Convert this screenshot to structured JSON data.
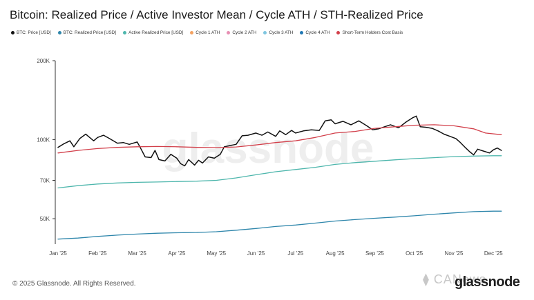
{
  "chart_data": {
    "type": "line",
    "title": "Bitcoin: Realized Price / Active Investor Mean / Cycle ATH / STH-Realized Price",
    "y_scale": "log",
    "ylim": [
      40000,
      200000
    ],
    "y_ticks": [
      {
        "value": 200000,
        "label": "200K"
      },
      {
        "value": 100000,
        "label": "100K"
      },
      {
        "value": 70000,
        "label": "70K"
      },
      {
        "value": 50000,
        "label": "50K"
      }
    ],
    "x_ticks": [
      "Jan '25",
      "Feb '25",
      "Mar '25",
      "Apr '25",
      "May '25",
      "Jun '25",
      "Jul '25",
      "Aug '25",
      "Sep '25",
      "Oct '25",
      "Nov '25",
      "Dec '25"
    ],
    "watermark": "glassnode",
    "legend": [
      {
        "name": "BTC: Price [USD]",
        "color": "#111111"
      },
      {
        "name": "BTC: Realized Price [USD]",
        "color": "#2e86ab"
      },
      {
        "name": "Active Realized Price [USD]",
        "color": "#4db6ac"
      },
      {
        "name": "Cycle 1 ATH",
        "color": "#f4a261"
      },
      {
        "name": "Cycle 2 ATH",
        "color": "#e78fb3"
      },
      {
        "name": "Cycle 3 ATH",
        "color": "#7fc6e0"
      },
      {
        "name": "Cycle 4 ATH",
        "color": "#1f77b4"
      },
      {
        "name": "Short-Term Holders Cost Basis",
        "color": "#d23f4a"
      }
    ],
    "series": [
      {
        "name": "BTC: Price [USD]",
        "color": "#111111",
        "width": 1.5,
        "x": [
          0,
          0.15,
          0.3,
          0.4,
          0.55,
          0.7,
          0.8,
          0.9,
          1.0,
          1.15,
          1.3,
          1.5,
          1.65,
          1.8,
          2.0,
          2.1,
          2.2,
          2.35,
          2.45,
          2.55,
          2.7,
          2.85,
          3.0,
          3.1,
          3.2,
          3.3,
          3.45,
          3.55,
          3.65,
          3.8,
          3.95,
          4.1,
          4.2,
          4.35,
          4.5,
          4.65,
          4.8,
          5.0,
          5.15,
          5.3,
          5.5,
          5.6,
          5.75,
          5.9,
          6.0,
          6.2,
          6.4,
          6.6,
          6.75,
          6.9,
          7.0,
          7.2,
          7.4,
          7.6,
          7.8,
          7.95,
          8.1,
          8.25,
          8.4,
          8.6,
          8.8,
          8.95,
          9.05,
          9.15,
          9.3,
          9.45,
          9.6,
          9.75,
          9.9,
          10.05,
          10.15,
          10.3,
          10.4,
          10.5,
          10.6,
          10.75,
          10.9,
          11.0,
          11.1,
          11.2
        ],
        "y": [
          93500,
          96500,
          99000,
          94000,
          101000,
          105000,
          102000,
          99000,
          102000,
          104000,
          101000,
          97000,
          97500,
          96000,
          98000,
          92000,
          86000,
          85500,
          91000,
          84000,
          83000,
          88000,
          85000,
          81000,
          79500,
          84000,
          80000,
          83500,
          81500,
          86000,
          85000,
          88000,
          94000,
          95000,
          96000,
          103500,
          104000,
          106000,
          104000,
          107000,
          103000,
          108000,
          104500,
          108500,
          106000,
          108000,
          109000,
          108500,
          118000,
          119000,
          115000,
          117500,
          114000,
          118000,
          113000,
          109000,
          110000,
          112000,
          114000,
          111000,
          117000,
          121000,
          123000,
          112000,
          111500,
          110500,
          108000,
          105000,
          103000,
          101000,
          98000,
          93000,
          90000,
          87500,
          92000,
          90500,
          89000,
          91500,
          93000,
          91000
        ]
      },
      {
        "name": "Short-Term Holders Cost Basis",
        "color": "#d23f4a",
        "width": 1.3,
        "x": [
          0,
          0.5,
          1.0,
          1.5,
          2.0,
          2.5,
          3.0,
          3.5,
          4.0,
          4.5,
          5.0,
          5.5,
          6.0,
          6.5,
          7.0,
          7.5,
          8.0,
          8.5,
          9.0,
          9.5,
          10.0,
          10.5,
          10.8,
          11.2
        ],
        "y": [
          89000,
          91000,
          92500,
          93500,
          94000,
          94200,
          94000,
          93500,
          93300,
          93800,
          95500,
          97500,
          99000,
          102000,
          106000,
          107500,
          110500,
          112000,
          113500,
          114000,
          113000,
          110000,
          106000,
          104500
        ]
      },
      {
        "name": "Active Realized Price [USD]",
        "color": "#4db6ac",
        "width": 1.3,
        "x": [
          0,
          0.5,
          1.0,
          1.5,
          2.0,
          2.5,
          3.0,
          3.5,
          4.0,
          4.5,
          5.0,
          5.5,
          6.0,
          6.5,
          7.0,
          7.5,
          8.0,
          8.5,
          9.0,
          9.5,
          10.0,
          10.5,
          11.0,
          11.2
        ],
        "y": [
          65500,
          66800,
          67800,
          68400,
          68800,
          69000,
          69300,
          69500,
          70000,
          71500,
          73500,
          75500,
          77000,
          78500,
          80500,
          81800,
          82800,
          83800,
          84700,
          85400,
          86200,
          86600,
          86900,
          86900
        ]
      },
      {
        "name": "BTC: Realized Price [USD]",
        "color": "#2e86ab",
        "width": 1.3,
        "x": [
          0,
          0.5,
          1.0,
          1.5,
          2.0,
          2.5,
          3.0,
          3.5,
          4.0,
          4.5,
          5.0,
          5.5,
          6.0,
          6.5,
          7.0,
          7.5,
          8.0,
          8.5,
          9.0,
          9.5,
          10.0,
          10.5,
          11.0,
          11.2
        ],
        "y": [
          41800,
          42200,
          42800,
          43300,
          43700,
          44000,
          44200,
          44300,
          44600,
          45200,
          45900,
          46700,
          47300,
          48100,
          49000,
          49600,
          50200,
          50700,
          51300,
          52000,
          52600,
          53200,
          53400,
          53400
        ]
      }
    ]
  },
  "footer": {
    "copyright": "© 2025 Glassnode. All Rights Reserved.",
    "brand": "glassnode"
  },
  "overlay_watermark": "⧫ CANews"
}
